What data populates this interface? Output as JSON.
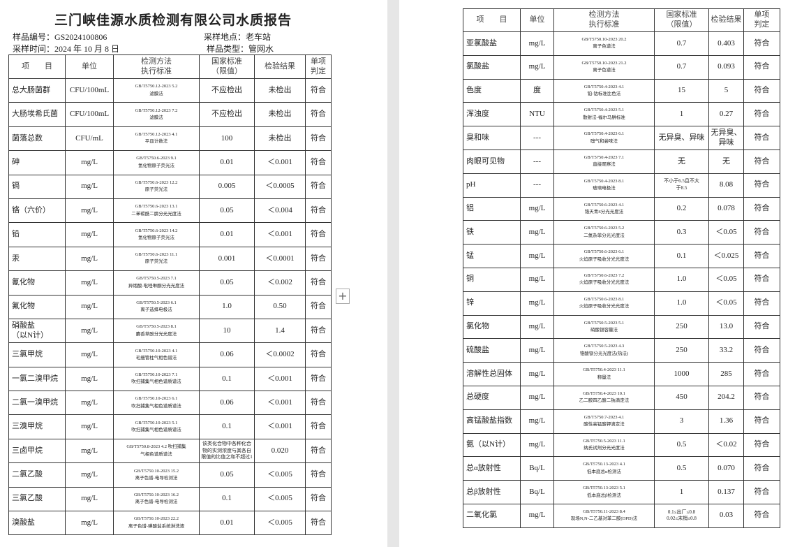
{
  "header": {
    "title": "三门峡佳源水质检测有限公司水质报告",
    "sample_no": "样品编号：GS2024100806",
    "location": "采样地点：老车站",
    "sample_date": "采样时间：2024 年 10 月 8 日",
    "sample_type": "样品类型：管网水"
  },
  "left_table": {
    "columns": [
      "项　　目",
      "单位",
      [
        "检测方法",
        "执行标准"
      ],
      [
        "国家标准",
        "（限值）"
      ],
      "检验结果",
      [
        "单项",
        "判定"
      ]
    ],
    "rows": [
      {
        "item": "总大肠菌群",
        "unit": "CFU/100mL",
        "method": [
          "GB/T5750.12-2023 5.2",
          "滤膜法"
        ],
        "limit": "不应检出",
        "result": "未检出",
        "verdict": "符合"
      },
      {
        "item": "大肠埃希氏菌",
        "unit": "CFU/100mL",
        "method": [
          "GB/T5750.12-2023 7.2",
          "滤膜法"
        ],
        "limit": "不应检出",
        "result": "未检出",
        "verdict": "符合"
      },
      {
        "item": "菌落总数",
        "unit": "CFU/mL",
        "method": [
          "GB/T5750.12-2023 4.1",
          "平皿计数法"
        ],
        "limit": "100",
        "result": "未检出",
        "verdict": "符合"
      },
      {
        "item": "砷",
        "unit": "mg/L",
        "method": [
          "GB/T5750.6-2023 9.1",
          "氢化物原子荧光法"
        ],
        "limit": "0.01",
        "result": "＜0.001",
        "verdict": "符合"
      },
      {
        "item": "镉",
        "unit": "mg/L",
        "method": [
          "GB/T5750.6-2023 12.2",
          "原子荧光法"
        ],
        "limit": "0.005",
        "result": "＜0.0005",
        "verdict": "符合"
      },
      {
        "item": "铬（六价）",
        "unit": "mg/L",
        "method": [
          "GB/T5750.6-2023 13.1",
          "二苯碳酰二肼分光光度法"
        ],
        "limit": "0.05",
        "result": "＜0.004",
        "verdict": "符合"
      },
      {
        "item": "铅",
        "unit": "mg/L",
        "method": [
          "GB/T5750.6-2023 14.2",
          "氢化物原子荧光法"
        ],
        "limit": "0.01",
        "result": "＜0.001",
        "verdict": "符合"
      },
      {
        "item": "汞",
        "unit": "mg/L",
        "method": [
          "GB/T5750.6-2023 11.1",
          "原子荧光法"
        ],
        "limit": "0.001",
        "result": "＜0.0001",
        "verdict": "符合"
      },
      {
        "item": "氰化物",
        "unit": "mg/L",
        "method": [
          "GB/T5750.5-2023 7.1",
          "异烟酸-吡唑啉酮分光光度法"
        ],
        "limit": "0.05",
        "result": "＜0.002",
        "verdict": "符合"
      },
      {
        "item": "氟化物",
        "unit": "mg/L",
        "method": [
          "GB/T5750.5-2023 6.1",
          "离子选择电极法"
        ],
        "limit": "1.0",
        "result": "0.50",
        "verdict": "符合"
      },
      {
        "item": [
          "硝酸盐",
          "（以N计）"
        ],
        "unit": "mg/L",
        "method": [
          "GB/T5750.5-2023 8.1",
          "麝香草酚分光光度法"
        ],
        "limit": "10",
        "result": "1.4",
        "verdict": "符合"
      },
      {
        "item": "三氯甲烷",
        "unit": "mg/L",
        "method": [
          "GB/T5750.10-2023 4.1",
          "毛细管柱气相色谱法"
        ],
        "limit": "0.06",
        "result": "＜0.0002",
        "verdict": "符合"
      },
      {
        "item": "一氯二溴甲烷",
        "unit": "mg/L",
        "method": [
          "GB/T5750.10-2023 7.1",
          "吹扫捕集气相色谱质谱法"
        ],
        "limit": "0.1",
        "result": "＜0.001",
        "verdict": "符合"
      },
      {
        "item": "二氯一溴甲烷",
        "unit": "mg/L",
        "method": [
          "GB/T5750.10-2023 6.1",
          "吹扫捕集气相色谱质谱法"
        ],
        "limit": "0.06",
        "result": "＜0.001",
        "verdict": "符合"
      },
      {
        "item": "三溴甲烷",
        "unit": "mg/L",
        "method": [
          "GB/T5750.10-2023 5.1",
          "吹扫捕集气相色谱质谱法"
        ],
        "limit": "0.1",
        "result": "＜0.001",
        "verdict": "符合"
      },
      {
        "item": "三卤甲烷",
        "unit": "mg/L",
        "method": [
          "GB/T5750.8-2023 4.2 吹扫捕集",
          "气相色谱质谱法"
        ],
        "limit": "该类化合物中各种化合物的实测浓度与其各自限值的比值之和不超过1",
        "result": "0.020",
        "verdict": "符合"
      },
      {
        "item": "二氯乙酸",
        "unit": "mg/L",
        "method": [
          "GB/T5750.10-2023 15.2",
          "离子色谱-电导检测法"
        ],
        "limit": "0.05",
        "result": "＜0.005",
        "verdict": "符合"
      },
      {
        "item": "三氯乙酸",
        "unit": "mg/L",
        "method": [
          "GB/T5750.10-2023 16.2",
          "离子色谱-电导检测法"
        ],
        "limit": "0.1",
        "result": "＜0.005",
        "verdict": "符合"
      },
      {
        "item": "溴酸盐",
        "unit": "mg/L",
        "method": [
          "GB/T5750.10-2023 22.2",
          "离子色谱-碘酸盐系统淋洗液"
        ],
        "limit": "0.01",
        "result": "＜0.005",
        "verdict": "符合"
      }
    ]
  },
  "right_table": {
    "columns": [
      "项　　目",
      "单位",
      [
        "检测方法",
        "执行标准"
      ],
      [
        "国家标准",
        "（限值）"
      ],
      "检验结果",
      [
        "单项",
        "判定"
      ]
    ],
    "rows": [
      {
        "item": "亚氯酸盐",
        "unit": "mg/L",
        "method": [
          "GB/T5750.10-2023 20.2",
          "离子色谱法"
        ],
        "limit": "0.7",
        "result": "0.403",
        "verdict": "符合"
      },
      {
        "item": "氯酸盐",
        "unit": "mg/L",
        "method": [
          "GB/T5750.10-2023 21.2",
          "离子色谱法"
        ],
        "limit": "0.7",
        "result": "0.093",
        "verdict": "符合"
      },
      {
        "item": "色度",
        "unit": "度",
        "method": [
          "GB/T5750.4-2023 4.1",
          "铂-钴标准比色法"
        ],
        "limit": "15",
        "result": "5",
        "verdict": "符合"
      },
      {
        "item": "浑浊度",
        "unit": "NTU",
        "method": [
          "GB/T5750.4-2023 5.1",
          "散射法-福尔马肼标准"
        ],
        "limit": "1",
        "result": "0.27",
        "verdict": "符合"
      },
      {
        "item": "臭和味",
        "unit": "---",
        "method": [
          "GB/T5750.4-2023 6.1",
          "嗅气和尝味法"
        ],
        "limit": "无异臭、异味",
        "result": "无异臭、异味",
        "verdict": "符合"
      },
      {
        "item": "肉眼可见物",
        "unit": "---",
        "method": [
          "GB/T5750.4-2023 7.1",
          "直接观察法"
        ],
        "limit": "无",
        "result": "无",
        "verdict": "符合"
      },
      {
        "item": "pH",
        "unit": "---",
        "method": [
          "GB/T5750.4-2023 8.1",
          "玻璃电极法"
        ],
        "limit": [
          "不小于6.5且不大",
          "于8.5"
        ],
        "result": "8.08",
        "verdict": "符合"
      },
      {
        "item": "铝",
        "unit": "mg/L",
        "method": [
          "GB/T5750.6-2023 4.1",
          "铬天青S分光光度法"
        ],
        "limit": "0.2",
        "result": "0.078",
        "verdict": "符合"
      },
      {
        "item": "铁",
        "unit": "mg/L",
        "method": [
          "GB/T5750.6-2023 5.2",
          "二氮杂菲分光光度法"
        ],
        "limit": "0.3",
        "result": "＜0.05",
        "verdict": "符合"
      },
      {
        "item": "锰",
        "unit": "mg/L",
        "method": [
          "GB/T5750.6-2023 6.1",
          "火焰原子吸收分光光度法"
        ],
        "limit": "0.1",
        "result": "＜0.025",
        "verdict": "符合"
      },
      {
        "item": "铜",
        "unit": "mg/L",
        "method": [
          "GB/T5750.6-2023 7.2",
          "火焰原子吸收分光光度法"
        ],
        "limit": "1.0",
        "result": "＜0.05",
        "verdict": "符合"
      },
      {
        "item": "锌",
        "unit": "mg/L",
        "method": [
          "GB/T5750.6-2023 8.1",
          "火焰原子吸收分光光度法"
        ],
        "limit": "1.0",
        "result": "＜0.05",
        "verdict": "符合"
      },
      {
        "item": "氯化物",
        "unit": "mg/L",
        "method": [
          "GB/T5750.5-2023 5.1",
          "硝酸银容量法"
        ],
        "limit": "250",
        "result": "13.0",
        "verdict": "符合"
      },
      {
        "item": "硫酸盐",
        "unit": "mg/L",
        "method": [
          "GB/T5750.5-2023 4.3",
          "铬酸钡分光光度法(热法)"
        ],
        "limit": "250",
        "result": "33.2",
        "verdict": "符合"
      },
      {
        "item": "溶解性总固体",
        "unit": "mg/L",
        "method": [
          "GB/T5750.4-2023 11.1",
          "称量法"
        ],
        "limit": "1000",
        "result": "285",
        "verdict": "符合"
      },
      {
        "item": "总硬度",
        "unit": "mg/L",
        "method": [
          "GB/T5750.4-2023 10.1",
          "乙二胺四乙酸二钠滴定法"
        ],
        "limit": "450",
        "result": "204.2",
        "verdict": "符合"
      },
      {
        "item": "高锰酸盐指数",
        "unit": "mg/L",
        "method": [
          "GB/T5750.7-2023 4.1",
          "酸性高锰酸钾滴定法"
        ],
        "limit": "3",
        "result": "1.36",
        "verdict": "符合"
      },
      {
        "item": "氨（以N计）",
        "unit": "mg/L",
        "method": [
          "GB/T5750.5-2023 11.1",
          "纳氏试剂分光光度法"
        ],
        "limit": "0.5",
        "result": "＜0.02",
        "verdict": "符合"
      },
      {
        "item": "总α放射性",
        "unit": "Bq/L",
        "method": [
          "GB/T5750.13-2023 4.1",
          "低本底总α检测法"
        ],
        "limit": "0.5",
        "result": "0.070",
        "verdict": "符合"
      },
      {
        "item": "总β放射性",
        "unit": "Bq/L",
        "method": [
          "GB/T5750.13-2023 5.1",
          "低本底总β检测法"
        ],
        "limit": "1",
        "result": "0.137",
        "verdict": "符合"
      },
      {
        "item": "二氧化氯",
        "unit": "mg/L",
        "method": [
          "GB/T5750.11-2023 8.4",
          "现场N,N-二乙基对苯二胺(DPD)法"
        ],
        "limit": [
          "0.1≤出厂≤0.8",
          "0.02≤末梢≤0.8"
        ],
        "result": "0.03",
        "verdict": "符合"
      }
    ]
  }
}
